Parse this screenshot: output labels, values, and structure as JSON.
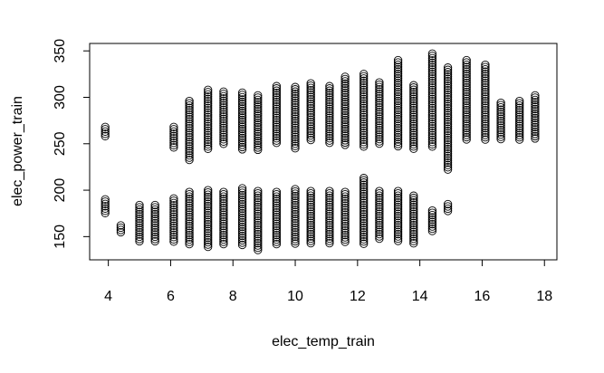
{
  "chart_data": {
    "type": "scatter",
    "title": "",
    "xlabel": "elec_temp_train",
    "ylabel": "elec_power_train",
    "xlim": [
      3.4,
      18.4
    ],
    "ylim": [
      125,
      358
    ],
    "xticks": [
      4,
      6,
      8,
      10,
      12,
      14,
      16,
      18
    ],
    "yticks": [
      150,
      200,
      250,
      300,
      350
    ],
    "marker": "open-circle",
    "marker_color": "#000000",
    "grid": false,
    "legend": "none",
    "columns": [
      {
        "x": 3.9,
        "ranges": [
          [
            175,
            190
          ],
          [
            256,
            268
          ]
        ]
      },
      {
        "x": 4.4,
        "ranges": [
          [
            153,
            162
          ]
        ]
      },
      {
        "x": 5.0,
        "ranges": [
          [
            145,
            184
          ]
        ]
      },
      {
        "x": 5.5,
        "ranges": [
          [
            144,
            184
          ]
        ]
      },
      {
        "x": 6.1,
        "ranges": [
          [
            143,
            191
          ],
          [
            246,
            268
          ]
        ]
      },
      {
        "x": 6.6,
        "ranges": [
          [
            141,
            198
          ],
          [
            231,
            296
          ]
        ]
      },
      {
        "x": 7.2,
        "ranges": [
          [
            139,
            200
          ],
          [
            244,
            308
          ]
        ]
      },
      {
        "x": 7.7,
        "ranges": [
          [
            140,
            198
          ],
          [
            248,
            306
          ]
        ]
      },
      {
        "x": 8.3,
        "ranges": [
          [
            140,
            202
          ],
          [
            244,
            305
          ]
        ]
      },
      {
        "x": 8.8,
        "ranges": [
          [
            134,
            199
          ],
          [
            242,
            302
          ]
        ]
      },
      {
        "x": 9.4,
        "ranges": [
          [
            140,
            198
          ],
          [
            250,
            312
          ]
        ]
      },
      {
        "x": 10.0,
        "ranges": [
          [
            141,
            201
          ],
          [
            245,
            311
          ]
        ]
      },
      {
        "x": 10.5,
        "ranges": [
          [
            142,
            199
          ],
          [
            252,
            315
          ]
        ]
      },
      {
        "x": 11.1,
        "ranges": [
          [
            141,
            199
          ],
          [
            250,
            312
          ]
        ]
      },
      {
        "x": 11.6,
        "ranges": [
          [
            142,
            198
          ],
          [
            248,
            322
          ]
        ]
      },
      {
        "x": 12.2,
        "ranges": [
          [
            141,
            213
          ],
          [
            245,
            325
          ]
        ]
      },
      {
        "x": 12.7,
        "ranges": [
          [
            147,
            199
          ],
          [
            248,
            316
          ]
        ]
      },
      {
        "x": 13.3,
        "ranges": [
          [
            145,
            199
          ],
          [
            246,
            340
          ]
        ]
      },
      {
        "x": 13.8,
        "ranges": [
          [
            142,
            194
          ],
          [
            243,
            313
          ]
        ]
      },
      {
        "x": 14.4,
        "ranges": [
          [
            154,
            178
          ],
          [
            246,
            347
          ]
        ]
      },
      {
        "x": 14.9,
        "ranges": [
          [
            176,
            185
          ],
          [
            222,
            332
          ]
        ]
      },
      {
        "x": 15.5,
        "ranges": [
          [
            254,
            340
          ]
        ]
      },
      {
        "x": 16.1,
        "ranges": [
          [
            253,
            335
          ]
        ]
      },
      {
        "x": 16.6,
        "ranges": [
          [
            253,
            294
          ]
        ]
      },
      {
        "x": 17.2,
        "ranges": [
          [
            253,
            296
          ]
        ]
      },
      {
        "x": 17.7,
        "ranges": [
          [
            255,
            302
          ]
        ]
      }
    ]
  }
}
